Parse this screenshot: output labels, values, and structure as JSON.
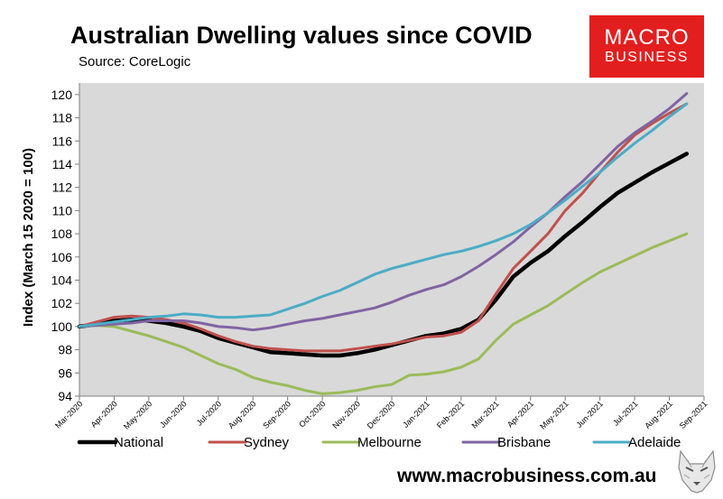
{
  "title": "Australian Dwelling values since COVID",
  "subtitle": "Source: CoreLogic",
  "brand": {
    "line1": "MACRO",
    "line2": "BUSINESS",
    "color": "#e31e1e"
  },
  "website": "www.macrobusiness.com.au",
  "mascot_icon": "wolf-head-icon",
  "chart_data": {
    "type": "line",
    "title": "Australian Dwelling values since COVID",
    "xlabel": "",
    "ylabel": "Index (March 15 2020 = 100)",
    "ylim": [
      94,
      121
    ],
    "yticks": [
      94,
      96,
      98,
      100,
      102,
      104,
      106,
      108,
      110,
      112,
      114,
      116,
      118,
      120
    ],
    "xlim": [
      0,
      18
    ],
    "x_tick_labels": [
      "Mar-2020",
      "Apr-2020",
      "May-2020",
      "Jun-2020",
      "Jul-2020",
      "Aug-2020",
      "Sep-2020",
      "Oct-2020",
      "Nov-2020",
      "Dec-2020",
      "Jan-2021",
      "Feb-2021",
      "Mar-2021",
      "Apr-2021",
      "May-2021",
      "Jun-2021",
      "Jul-2021",
      "Aug-2021",
      "Sep-2021"
    ],
    "x": [
      0,
      0.5,
      1,
      1.5,
      2,
      2.5,
      3,
      3.5,
      4,
      4.5,
      5,
      5.5,
      6,
      6.5,
      7,
      7.5,
      8,
      8.5,
      9,
      9.5,
      10,
      10.5,
      11,
      11.5,
      12,
      12.5,
      13,
      13.5,
      14,
      14.5,
      15,
      15.5,
      16,
      16.5,
      17,
      17.5
    ],
    "grid": false,
    "legend_position": "bottom",
    "series": [
      {
        "name": "National",
        "color": "#000000",
        "width": 4.5,
        "values": [
          100,
          100.2,
          100.5,
          100.6,
          100.5,
          100.3,
          100.0,
          99.6,
          99.0,
          98.6,
          98.2,
          97.8,
          97.7,
          97.6,
          97.5,
          97.5,
          97.7,
          98.0,
          98.4,
          98.8,
          99.2,
          99.4,
          99.8,
          100.6,
          102.3,
          104.3,
          105.5,
          106.5,
          107.8,
          109.0,
          110.3,
          111.5,
          112.4,
          113.3,
          114.1,
          114.9
        ]
      },
      {
        "name": "Sydney",
        "color": "#c0504d",
        "width": 3,
        "values": [
          100,
          100.4,
          100.8,
          100.9,
          100.8,
          100.6,
          100.3,
          99.8,
          99.2,
          98.7,
          98.3,
          98.1,
          98.0,
          97.9,
          97.9,
          97.9,
          98.1,
          98.3,
          98.5,
          98.8,
          99.1,
          99.2,
          99.5,
          100.5,
          102.8,
          105.0,
          106.5,
          108.0,
          110.0,
          111.5,
          113.3,
          115.0,
          116.5,
          117.5,
          118.4,
          119.2
        ]
      },
      {
        "name": "Melbourne",
        "color": "#9bbb59",
        "width": 3,
        "values": [
          100,
          100.1,
          100.0,
          99.6,
          99.2,
          98.7,
          98.2,
          97.5,
          96.8,
          96.3,
          95.6,
          95.2,
          94.9,
          94.5,
          94.2,
          94.3,
          94.5,
          94.8,
          95.0,
          95.8,
          95.9,
          96.1,
          96.5,
          97.2,
          98.8,
          100.2,
          101.0,
          101.8,
          102.8,
          103.8,
          104.7,
          105.4,
          106.1,
          106.8,
          107.4,
          108.0
        ]
      },
      {
        "name": "Brisbane",
        "color": "#8064a2",
        "width": 3,
        "values": [
          100,
          100.1,
          100.2,
          100.3,
          100.5,
          100.5,
          100.5,
          100.3,
          100.0,
          99.9,
          99.7,
          99.9,
          100.2,
          100.5,
          100.7,
          101.0,
          101.3,
          101.6,
          102.1,
          102.7,
          103.2,
          103.6,
          104.3,
          105.2,
          106.2,
          107.3,
          108.6,
          109.8,
          111.2,
          112.5,
          114.0,
          115.5,
          116.7,
          117.7,
          118.8,
          120.1
        ]
      },
      {
        "name": "Adelaide",
        "color": "#4bacc6",
        "width": 3,
        "values": [
          100,
          100.2,
          100.4,
          100.6,
          100.8,
          100.9,
          101.1,
          101.0,
          100.8,
          100.8,
          100.9,
          101.0,
          101.5,
          102.0,
          102.6,
          103.1,
          103.8,
          104.5,
          105.0,
          105.4,
          105.8,
          106.2,
          106.5,
          106.9,
          107.4,
          108.0,
          108.8,
          109.8,
          110.9,
          112.1,
          113.3,
          114.6,
          115.8,
          116.9,
          118.1,
          119.2
        ]
      }
    ]
  }
}
